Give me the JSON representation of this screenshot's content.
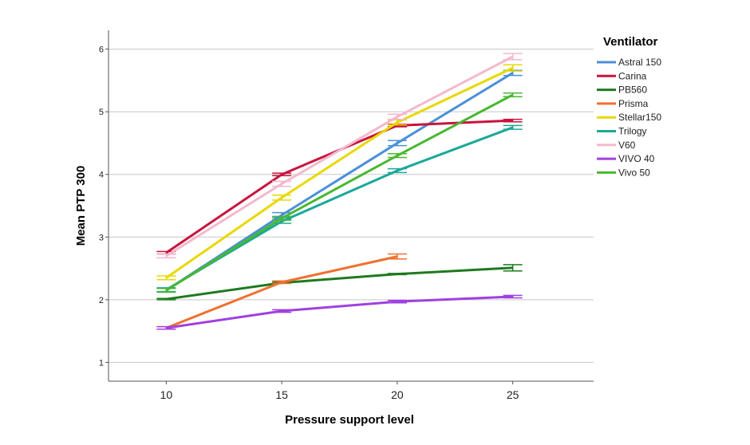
{
  "chart_data": {
    "type": "line",
    "title": "",
    "xlabel": "Pressure support level",
    "ylabel": "Mean PTP 300",
    "x": [
      10,
      15,
      20,
      25
    ],
    "x_tick_labels": [
      "10",
      "15",
      "20",
      "25"
    ],
    "y_ticks": [
      1,
      2,
      3,
      4,
      5,
      6
    ],
    "y_tick_labels": [
      "1",
      "2",
      "3",
      "4",
      "5",
      "6"
    ],
    "xlim": [
      7.5,
      28.5
    ],
    "ylim": [
      0.7,
      6.3
    ],
    "grid": "horizontal",
    "legend_title": "Ventilator",
    "legend_position": "right",
    "series": [
      {
        "name": "Astral 150",
        "color": "#4a90d9",
        "values": [
          2.15,
          3.35,
          4.5,
          5.62
        ],
        "errors": [
          0.03,
          0.04,
          0.04,
          0.04
        ]
      },
      {
        "name": "Carina",
        "color": "#c8143c",
        "values": [
          2.75,
          4.0,
          4.78,
          4.86
        ],
        "errors": [
          0.02,
          0.02,
          0.02,
          0.02
        ]
      },
      {
        "name": "PB560",
        "color": "#1e7a1e",
        "values": [
          2.01,
          2.27,
          2.41,
          2.51
        ],
        "errors": [
          0.01,
          0.01,
          0.01,
          0.05
        ]
      },
      {
        "name": "Prisma",
        "color": "#f07030",
        "values": [
          1.55,
          2.28,
          2.69,
          null
        ],
        "errors": [
          0.02,
          0.02,
          0.04,
          null
        ]
      },
      {
        "name": "Stellar150",
        "color": "#e8d800",
        "values": [
          2.35,
          3.63,
          4.83,
          5.7
        ],
        "errors": [
          0.03,
          0.04,
          0.04,
          0.05
        ]
      },
      {
        "name": "Trilogy",
        "color": "#1aa898",
        "values": [
          2.16,
          3.25,
          4.06,
          4.75
        ],
        "errors": [
          0.03,
          0.03,
          0.03,
          0.03
        ]
      },
      {
        "name": "V60",
        "color": "#f4b8cc",
        "values": [
          2.7,
          3.85,
          4.92,
          5.88
        ],
        "errors": [
          0.03,
          0.04,
          0.04,
          0.05
        ]
      },
      {
        "name": "VIVO 40",
        "color": "#a040e0",
        "values": [
          1.55,
          1.82,
          1.97,
          2.05
        ],
        "errors": [
          0.02,
          0.02,
          0.02,
          0.02
        ]
      },
      {
        "name": "Vivo 50",
        "color": "#48b830",
        "values": [
          2.15,
          3.3,
          4.3,
          5.27
        ],
        "errors": [
          0.03,
          0.03,
          0.03,
          0.03
        ]
      }
    ]
  }
}
